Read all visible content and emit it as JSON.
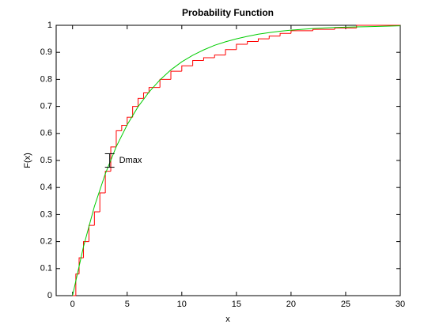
{
  "chart_data": {
    "type": "line",
    "title": "Probability Function",
    "x_label": "x",
    "y_label": "F(x)",
    "xlim": [
      -1.5,
      30
    ],
    "ylim": [
      0,
      1
    ],
    "xticks": [
      0,
      5,
      10,
      15,
      20,
      25,
      30
    ],
    "yticks": [
      0,
      0.1,
      0.2,
      0.3,
      0.4,
      0.5,
      0.6,
      0.7,
      0.8,
      0.9,
      1
    ],
    "series": [
      {
        "color": "#ff0000",
        "step": true,
        "x": [
          0,
          0.3,
          0.6,
          1,
          1.5,
          2,
          2.5,
          3,
          3.5,
          4,
          4.5,
          5,
          5.5,
          6,
          6.5,
          7,
          8,
          9,
          10,
          11,
          12,
          13,
          14,
          15,
          16,
          17,
          18,
          19,
          20,
          22,
          24,
          26,
          30
        ],
        "values": [
          0,
          0.08,
          0.14,
          0.2,
          0.26,
          0.31,
          0.38,
          0.46,
          0.55,
          0.61,
          0.63,
          0.66,
          0.7,
          0.73,
          0.75,
          0.77,
          0.8,
          0.83,
          0.85,
          0.87,
          0.88,
          0.89,
          0.91,
          0.93,
          0.94,
          0.95,
          0.96,
          0.97,
          0.98,
          0.985,
          0.99,
          1,
          1
        ]
      },
      {
        "color": "#00cc00",
        "step": false,
        "x": [
          0,
          1,
          2,
          3,
          4,
          5,
          6,
          7,
          8,
          9,
          10,
          11,
          12,
          13,
          14,
          15,
          16,
          17,
          18,
          19,
          20,
          21,
          22,
          23,
          24,
          25,
          26,
          27,
          28,
          29,
          30
        ],
        "values": [
          0,
          0.181,
          0.33,
          0.451,
          0.551,
          0.632,
          0.699,
          0.753,
          0.798,
          0.835,
          0.865,
          0.889,
          0.909,
          0.926,
          0.939,
          0.95,
          0.959,
          0.967,
          0.973,
          0.978,
          0.982,
          0.985,
          0.988,
          0.99,
          0.992,
          0.993,
          0.994,
          0.995,
          0.996,
          0.997,
          0.998
        ]
      }
    ],
    "annotation": {
      "text": "Dmax",
      "x": 3.4,
      "y": [
        0.475,
        0.525
      ]
    }
  }
}
